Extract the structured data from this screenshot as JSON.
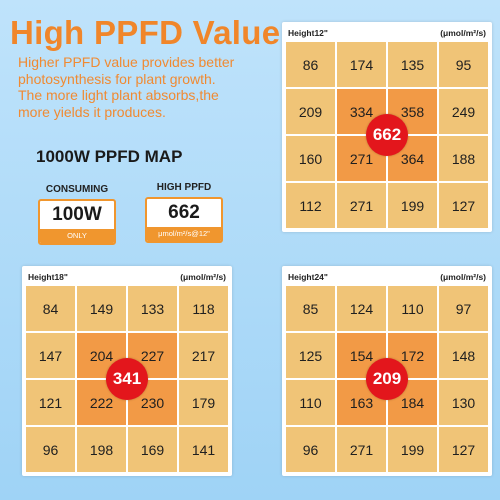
{
  "header": {
    "title": "High PPFD Value",
    "desc_lines": [
      "Higher PPFD value provides better",
      "photosynthesis for plant growth.",
      "The more light plant absorbs,the",
      "more yields it produces."
    ]
  },
  "map_title": "1000W PPFD MAP",
  "stats": {
    "consuming": {
      "label": "CONSUMING",
      "value": "100W",
      "sub": "ONLY"
    },
    "ppfd": {
      "label": "HIGH PPFD",
      "value": "662",
      "sub": "μmol/m²/s@12\""
    }
  },
  "panels": [
    {
      "height_label": "Height12\"",
      "unit": "(μmol/m²/s)",
      "center": "662",
      "grid": [
        "86",
        "174",
        "135",
        "95",
        "209",
        "334",
        "358",
        "249",
        "160",
        "271",
        "364",
        "188",
        "112",
        "271",
        "199",
        "127"
      ]
    },
    {
      "height_label": "Height18\"",
      "unit": "(μmol/m²/s)",
      "center": "341",
      "grid": [
        "84",
        "149",
        "133",
        "118",
        "147",
        "204",
        "227",
        "217",
        "121",
        "222",
        "230",
        "179",
        "96",
        "198",
        "169",
        "141"
      ]
    },
    {
      "height_label": "Height24\"",
      "unit": "(μmol/m²/s)",
      "center": "209",
      "grid": [
        "85",
        "124",
        "110",
        "97",
        "125",
        "154",
        "172",
        "148",
        "110",
        "163",
        "184",
        "130",
        "96",
        "271",
        "199",
        "127"
      ]
    }
  ]
}
